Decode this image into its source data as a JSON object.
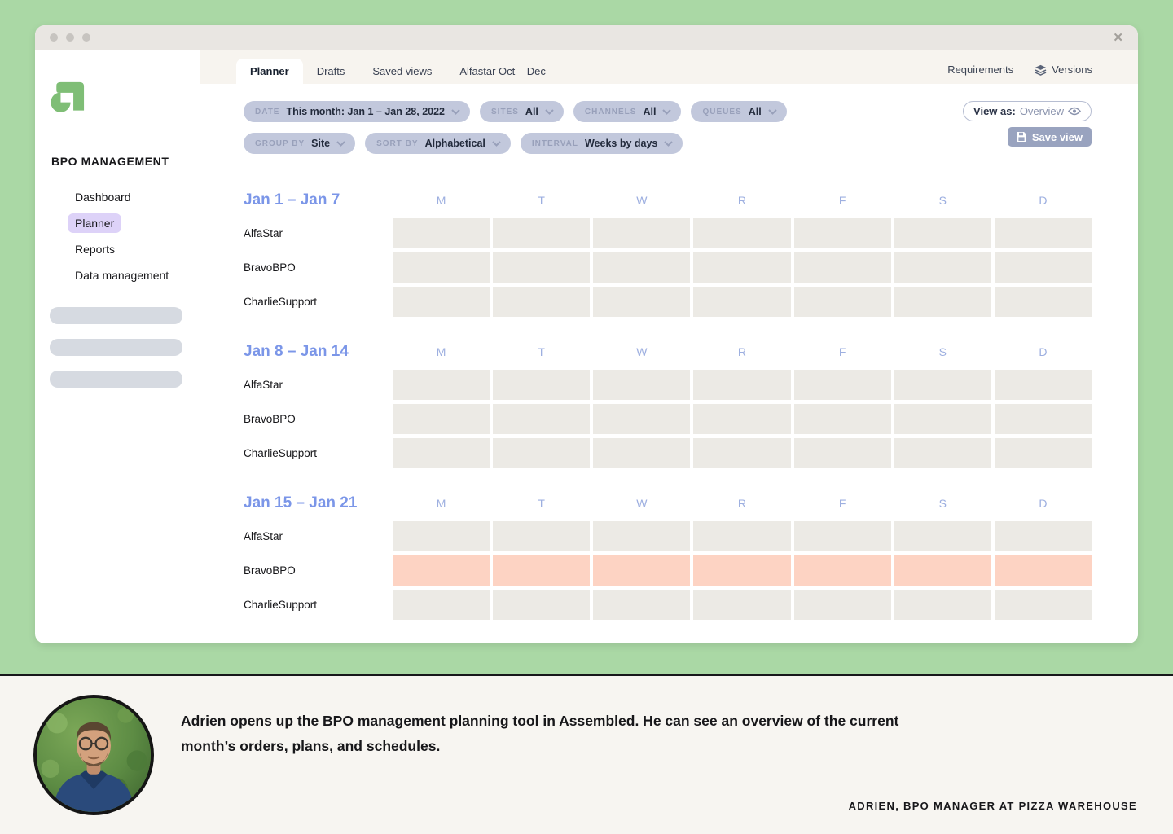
{
  "window": {
    "close_icon": "✕"
  },
  "sidebar": {
    "brand": "BPO MANAGEMENT",
    "items": [
      {
        "label": "Dashboard"
      },
      {
        "label": "Planner"
      },
      {
        "label": "Reports"
      },
      {
        "label": "Data management"
      }
    ]
  },
  "tabs": {
    "items": [
      {
        "label": "Planner"
      },
      {
        "label": "Drafts"
      },
      {
        "label": "Saved views"
      },
      {
        "label": "Alfastar Oct – Dec"
      }
    ],
    "requirements_label": "Requirements",
    "versions_label": "Versions"
  },
  "filters": {
    "row1": [
      {
        "label": "DATE",
        "value": "This month: Jan 1 – Jan 28, 2022"
      },
      {
        "label": "SITES",
        "value": "All"
      },
      {
        "label": "CHANNELS",
        "value": "All"
      },
      {
        "label": "QUEUES",
        "value": "All"
      }
    ],
    "row2": [
      {
        "label": "GROUP BY",
        "value": "Site"
      },
      {
        "label": "SORT BY",
        "value": "Alphabetical"
      },
      {
        "label": "INTERVAL",
        "value": "Weeks by days"
      }
    ],
    "view_as": {
      "label": "View as:",
      "value": "Overview"
    },
    "save_view_label": "Save view"
  },
  "planner": {
    "day_headers": [
      "M",
      "T",
      "W",
      "R",
      "F",
      "S",
      "D"
    ],
    "weeks": [
      {
        "title": "Jan 1 – Jan 7",
        "rows": [
          {
            "name": "AlfaStar",
            "highlight": false
          },
          {
            "name": "BravoBPO",
            "highlight": false
          },
          {
            "name": "CharlieSupport",
            "highlight": false
          }
        ]
      },
      {
        "title": "Jan 8 – Jan 14",
        "rows": [
          {
            "name": "AlfaStar",
            "highlight": false
          },
          {
            "name": "BravoBPO",
            "highlight": false
          },
          {
            "name": "CharlieSupport",
            "highlight": false
          }
        ]
      },
      {
        "title": "Jan 15 – Jan 21",
        "rows": [
          {
            "name": "AlfaStar",
            "highlight": false
          },
          {
            "name": "BravoBPO",
            "highlight": true
          },
          {
            "name": "CharlieSupport",
            "highlight": false
          }
        ]
      },
      {
        "title": "",
        "rows": []
      }
    ]
  },
  "caption": {
    "text": "Adrien opens up the BPO management planning tool in Assembled. He can see an overview of the current month’s orders, plans, and schedules.",
    "attribution": "ADRIEN, BPO MANAGER AT PIZZA WAREHOUSE"
  },
  "colors": {
    "page_background": "#aad8a5",
    "accent_green_logo": "#7fbe76",
    "active_nav_purple": "#ddd2f8",
    "filter_pill": "#c2c8dc",
    "week_title_blue": "#7b96e8",
    "day_letter_blue": "#9dafe0",
    "cell_gray": "#eceae5",
    "cell_highlight_pink": "#fdd3c3",
    "save_button": "#99a3bf"
  }
}
